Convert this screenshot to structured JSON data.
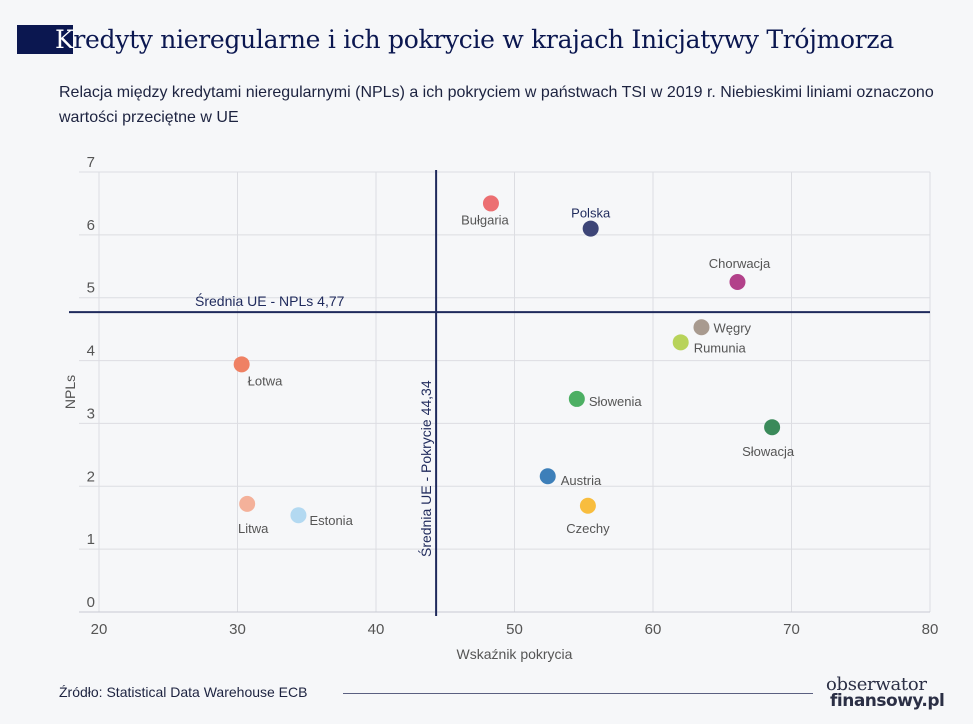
{
  "header": {
    "title_first": "K",
    "title_rest": "redyty nieregularne i ich pokrycie w krajach Inicjatywy Trójmorza",
    "subtitle": "Relacja między kredytami nieregularnymi (NPLs) a ich pokryciem w państwach TSI w 2019 r. Niebieskimi liniami oznaczono wartości przeciętne w UE"
  },
  "footer": {
    "source": "Źródło: Statistical Data Warehouse ECB",
    "logo_line1": "obserwator",
    "logo_line2": "finansowy.pl"
  },
  "chart_data": {
    "type": "scatter",
    "xlabel": "Wskaźnik pokrycia",
    "ylabel": "NPLs",
    "xlim": [
      20,
      80
    ],
    "ylim": [
      0,
      7
    ],
    "xticks": [
      "20",
      "30",
      "40",
      "50",
      "60",
      "70",
      "80"
    ],
    "yticks": [
      "0",
      "1",
      "2",
      "3",
      "4",
      "5",
      "6",
      "7"
    ],
    "grid": true,
    "reference_lines": [
      {
        "axis": "y",
        "value": 4.77,
        "label": "Średnia UE - NPLs 4,77",
        "color": "#1f2a5c"
      },
      {
        "axis": "x",
        "value": 44.34,
        "label": "Średnia UE - Pokrycie 44,34",
        "color": "#1f2a5c"
      }
    ],
    "points": [
      {
        "label": "Bułgaria",
        "x": 48.3,
        "y": 6.5,
        "color": "#ec6f72"
      },
      {
        "label": "Polska",
        "x": 55.5,
        "y": 6.1,
        "color": "#3d4577"
      },
      {
        "label": "Chorwacja",
        "x": 66.1,
        "y": 5.25,
        "color": "#b2418a"
      },
      {
        "label": "Węgry",
        "x": 63.5,
        "y": 4.53,
        "color": "#a89a8f"
      },
      {
        "label": "Rumunia",
        "x": 62.0,
        "y": 4.29,
        "color": "#b8d35a"
      },
      {
        "label": "Łotwa",
        "x": 30.3,
        "y": 3.94,
        "color": "#ef8164"
      },
      {
        "label": "Słowenia",
        "x": 54.5,
        "y": 3.39,
        "color": "#4caf63"
      },
      {
        "label": "Słowacja",
        "x": 68.6,
        "y": 2.94,
        "color": "#3a8a5a"
      },
      {
        "label": "Austria",
        "x": 52.4,
        "y": 2.16,
        "color": "#3d7fb9"
      },
      {
        "label": "Czechy",
        "x": 55.3,
        "y": 1.69,
        "color": "#f8bd3e"
      },
      {
        "label": "Litwa",
        "x": 30.7,
        "y": 1.72,
        "color": "#f4b19a"
      },
      {
        "label": "Estonia",
        "x": 34.4,
        "y": 1.54,
        "color": "#b3d9f1"
      }
    ]
  }
}
